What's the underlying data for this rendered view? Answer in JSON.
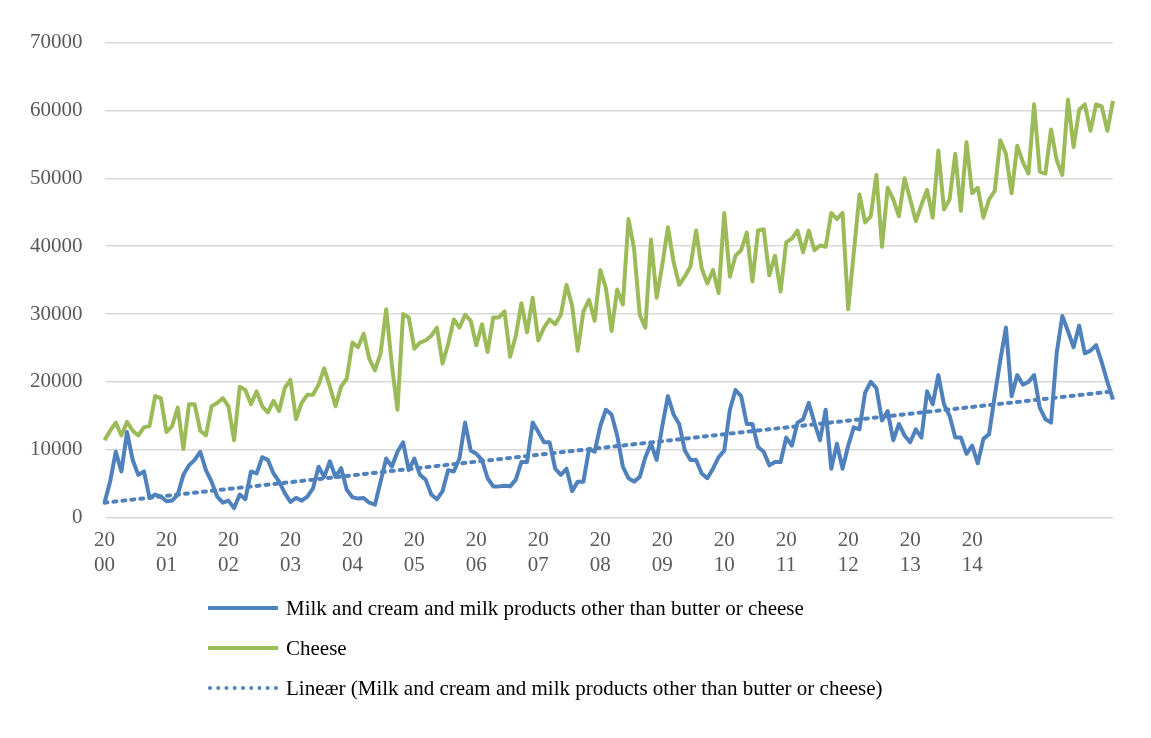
{
  "chart_data": {
    "type": "line",
    "categories": [
      "2000",
      null,
      null,
      null,
      null,
      null,
      null,
      null,
      null,
      null,
      null,
      "2001",
      null,
      null,
      null,
      null,
      null,
      null,
      null,
      null,
      null,
      null,
      "2002",
      null,
      null,
      null,
      null,
      null,
      null,
      null,
      null,
      null,
      null,
      "2003",
      null,
      null,
      null,
      null,
      null,
      null,
      null,
      null,
      null,
      null,
      "2004",
      null,
      null,
      null,
      null,
      null,
      null,
      null,
      null,
      null,
      null,
      "2005",
      null,
      null,
      null,
      null,
      null,
      null,
      null,
      null,
      null,
      null,
      "2006",
      null,
      null,
      null,
      null,
      null,
      null,
      null,
      null,
      null,
      null,
      "2007",
      null,
      null,
      null,
      null,
      null,
      null,
      null,
      null,
      null,
      null,
      "2008",
      null,
      null,
      null,
      null,
      null,
      null,
      null,
      null,
      null,
      null,
      "2009",
      null,
      null,
      null,
      null,
      null,
      null,
      null,
      null,
      null,
      null,
      "2010",
      null,
      null,
      null,
      null,
      null,
      null,
      null,
      null,
      null,
      null,
      "2011",
      null,
      null,
      null,
      null,
      null,
      null,
      null,
      null,
      null,
      null,
      "2012",
      null,
      null,
      null,
      null,
      null,
      null,
      null,
      null,
      null,
      null,
      "2013",
      null,
      null,
      null,
      null,
      null,
      null,
      null,
      null,
      null,
      null,
      "2014",
      null,
      null,
      null,
      null,
      null,
      null,
      null,
      null,
      null,
      null,
      null,
      null,
      null,
      null,
      null,
      null,
      null,
      null,
      null,
      null,
      null,
      null,
      null,
      null,
      null
    ],
    "series": [
      {
        "name": "Milk and cream and milk products other than butter or cheese",
        "color": "#4f81bd",
        "values": [
          2200,
          5300,
          9700,
          6800,
          12600,
          8500,
          6300,
          6800,
          2900,
          3400,
          3100,
          2400,
          2500,
          3400,
          6300,
          7700,
          8500,
          9700,
          7000,
          5300,
          3100,
          2200,
          2500,
          1400,
          3400,
          2700,
          6800,
          6500,
          8900,
          8500,
          6500,
          5300,
          3600,
          2300,
          2900,
          2500,
          3100,
          4300,
          7500,
          6000,
          8300,
          6000,
          7300,
          4100,
          3000,
          2800,
          2900,
          2200,
          1900,
          5300,
          8700,
          7500,
          9700,
          11100,
          7000,
          8700,
          6300,
          5600,
          3400,
          2700,
          3900,
          7000,
          6800,
          8700,
          14000,
          9900,
          9400,
          8500,
          5800,
          4600,
          4600,
          4700,
          4600,
          5600,
          8200,
          8200,
          14000,
          12600,
          11100,
          11100,
          7200,
          6300,
          7200,
          3900,
          5300,
          5300,
          10100,
          9700,
          13500,
          15900,
          15200,
          12100,
          7500,
          5800,
          5300,
          6000,
          8900,
          10900,
          8500,
          13500,
          17900,
          15200,
          13800,
          9900,
          8500,
          8500,
          6500,
          5800,
          7200,
          8900,
          9900,
          15900,
          18800,
          17900,
          13800,
          13800,
          10400,
          9700,
          7700,
          8200,
          8200,
          11800,
          10600,
          14000,
          14500,
          16900,
          14000,
          11400,
          15900,
          7200,
          10900,
          7200,
          10600,
          13300,
          13000,
          18400,
          20000,
          19100,
          14300,
          15700,
          11400,
          13800,
          12100,
          11100,
          13000,
          11800,
          18600,
          16700,
          21000,
          16700,
          15000,
          11800,
          11800,
          9400,
          10600,
          8000,
          11600,
          12300,
          17900,
          23200,
          28000,
          17900,
          21000,
          19600,
          20000,
          21000,
          16200,
          14500,
          14000,
          24200,
          29700,
          27500,
          25100,
          28300,
          24200,
          24600,
          25400,
          22900,
          20000,
          17400
        ]
      },
      {
        "name": "Cheese",
        "color": "#9bbb59",
        "values": [
          11400,
          12800,
          14000,
          12100,
          14100,
          12800,
          12100,
          13300,
          13500,
          17900,
          17600,
          12600,
          13500,
          16200,
          10100,
          16700,
          16700,
          12800,
          12100,
          16400,
          16900,
          17600,
          16400,
          11400,
          19300,
          18800,
          16700,
          18600,
          16400,
          15500,
          17200,
          15700,
          19100,
          20300,
          14500,
          16900,
          18100,
          18100,
          19600,
          22000,
          19300,
          16400,
          19300,
          20500,
          25800,
          25100,
          27100,
          23400,
          21700,
          24200,
          30700,
          22500,
          15900,
          30000,
          29500,
          24900,
          25800,
          26100,
          26800,
          28000,
          22700,
          25600,
          29200,
          28000,
          29900,
          29000,
          25400,
          28500,
          24400,
          29500,
          29500,
          30400,
          23700,
          26800,
          31600,
          27300,
          32400,
          26100,
          28000,
          29200,
          28500,
          29900,
          34300,
          31200,
          24600,
          30400,
          32100,
          29000,
          36500,
          33800,
          27500,
          33600,
          31400,
          44000,
          39600,
          29900,
          28000,
          41000,
          32400,
          37200,
          42800,
          37700,
          34300,
          35500,
          37000,
          42300,
          36700,
          34500,
          36500,
          33100,
          44900,
          35500,
          38600,
          39400,
          42000,
          34800,
          42300,
          42500,
          35700,
          38600,
          33300,
          40600,
          41100,
          42300,
          39100,
          42300,
          39400,
          40100,
          39900,
          44900,
          44000,
          44900,
          30700,
          39100,
          47600,
          43500,
          44400,
          50500,
          39900,
          48600,
          46900,
          44400,
          50000,
          46900,
          43700,
          46100,
          48300,
          44200,
          54100,
          45400,
          46900,
          53600,
          45200,
          55300,
          47800,
          48600,
          44200,
          46900,
          48100,
          55600,
          53600,
          47800,
          54800,
          52400,
          50700,
          60900,
          51000,
          50700,
          57200,
          52700,
          50500,
          61600,
          54600,
          60100,
          60900,
          57000,
          60900,
          60600,
          57000,
          61400
        ]
      },
      {
        "name": "Lineær (Milk and cream and milk products other than butter or cheese)",
        "color": "#4f81bd",
        "type": "line",
        "line_style": "dotted",
        "values": [
          2200,
          null,
          null,
          null,
          null,
          null,
          null,
          null,
          null,
          null,
          null,
          null,
          null,
          null,
          null,
          null,
          null,
          null,
          null,
          null,
          null,
          null,
          null,
          null,
          null,
          null,
          null,
          null,
          null,
          null,
          null,
          null,
          null,
          null,
          null,
          null,
          null,
          null,
          null,
          null,
          null,
          null,
          null,
          null,
          null,
          null,
          null,
          null,
          null,
          null,
          null,
          null,
          null,
          null,
          null,
          null,
          null,
          null,
          null,
          null,
          null,
          null,
          null,
          null,
          null,
          null,
          null,
          null,
          null,
          null,
          null,
          null,
          null,
          null,
          null,
          null,
          null,
          null,
          null,
          null,
          null,
          null,
          null,
          null,
          null,
          null,
          null,
          null,
          null,
          null,
          null,
          null,
          null,
          null,
          null,
          null,
          null,
          null,
          null,
          null,
          null,
          null,
          null,
          null,
          null,
          null,
          null,
          null,
          null,
          null,
          null,
          null,
          null,
          null,
          null,
          null,
          null,
          null,
          null,
          null,
          null,
          null,
          null,
          null,
          null,
          null,
          null,
          null,
          null,
          null,
          null,
          null,
          null,
          null,
          null,
          null,
          null,
          null,
          null,
          null,
          null,
          null,
          null,
          null,
          null,
          null,
          null,
          null,
          null,
          null,
          null,
          null,
          null,
          null,
          null,
          null,
          null,
          null,
          null,
          null,
          null,
          null,
          null,
          null,
          null,
          null,
          null,
          null,
          null,
          null,
          null,
          null,
          null,
          null,
          null,
          null,
          null,
          null,
          null,
          18600
        ]
      }
    ],
    "ylim": [
      0,
      70000
    ],
    "yticks": [
      0,
      10000,
      20000,
      30000,
      40000,
      50000,
      60000,
      70000
    ],
    "grid": "y",
    "legend": "bottom",
    "marker": "none",
    "line_style": "solid"
  }
}
